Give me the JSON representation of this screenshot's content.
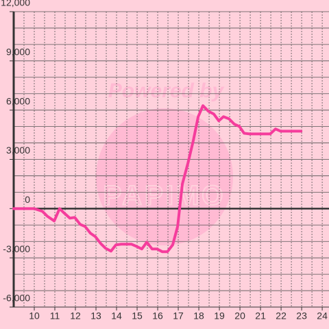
{
  "chart_data": {
    "type": "line",
    "watermark": [
      "Powered by",
      "PAPIMO"
    ],
    "x": [
      9.0,
      10.0,
      10.4,
      10.63,
      10.97,
      11.23,
      11.47,
      11.73,
      11.97,
      12.23,
      12.47,
      12.73,
      12.97,
      13.23,
      13.47,
      13.73,
      13.97,
      14.23,
      14.73,
      14.97,
      15.23,
      15.47,
      15.73,
      15.97,
      16.23,
      16.47,
      16.73,
      16.97,
      17.2,
      17.47,
      17.73,
      17.97,
      18.2,
      18.47,
      18.73,
      18.97,
      19.2,
      19.47,
      19.73,
      19.97,
      20.2,
      20.47,
      21.47,
      21.73,
      21.97,
      22.97
    ],
    "series": [
      {
        "color": "#f53c9c",
        "values": [
          0,
          0,
          -170,
          -460,
          -750,
          0,
          -290,
          -580,
          -540,
          -960,
          -1090,
          -1500,
          -1710,
          -2130,
          -2420,
          -2590,
          -2210,
          -2170,
          -2170,
          -2300,
          -2460,
          -2050,
          -2460,
          -2460,
          -2630,
          -2630,
          -2210,
          -1090,
          1500,
          2760,
          4130,
          5600,
          6270,
          5930,
          5760,
          5350,
          5600,
          5470,
          5140,
          5010,
          4590,
          4550,
          4550,
          4850,
          4720,
          4720
        ]
      }
    ],
    "xlim": [
      9,
      24.33
    ],
    "ylim": [
      -6000,
      12000
    ],
    "xticks": [
      10,
      11,
      12,
      13,
      14,
      15,
      16,
      17,
      18,
      19,
      20,
      21,
      22,
      23,
      24
    ],
    "yticks": [
      {
        "value": -6000,
        "label": "-6,000"
      },
      {
        "value": -3000,
        "label": "-3,000"
      },
      0,
      {
        "value": 3000,
        "label": "3,000"
      },
      {
        "value": 6000,
        "label": "6,000"
      },
      {
        "value": 9000,
        "label": "9,000"
      },
      {
        "value": 12000,
        "label": "12,000"
      }
    ],
    "yminor": [
      -5000,
      -4000,
      -2000,
      -1000,
      1000,
      2000,
      4000,
      5000,
      7000,
      8000,
      10000,
      11000
    ],
    "xminor": [
      9.5,
      10.5,
      11.5,
      12.5,
      13.5,
      14.5,
      15.5,
      16.5,
      17.5,
      18.5,
      19.5,
      20.5,
      21.5,
      22.5,
      23.5
    ],
    "grid": true
  }
}
